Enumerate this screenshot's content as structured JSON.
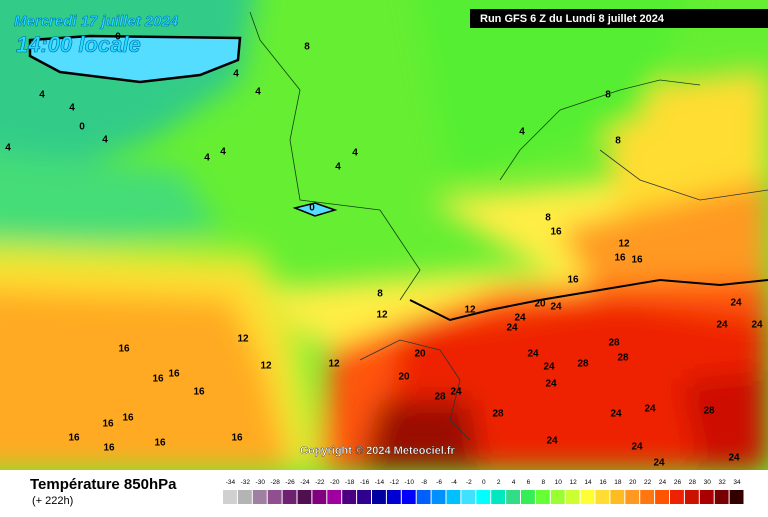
{
  "header": {
    "date": "Mercredi 17 juillet 2024",
    "time": "14:00 locale",
    "run": "Run GFS 6 Z du Lundi 8 juillet 2024"
  },
  "copyright": "Copyright © 2024 Meteociel.fr",
  "footer": {
    "title": "Température 850hPa",
    "lead": "(+ 222h)"
  },
  "legend": {
    "values": [
      -34,
      -32,
      -30,
      -28,
      -26,
      -24,
      -22,
      -20,
      -18,
      -16,
      -14,
      -12,
      -10,
      -8,
      -6,
      -4,
      -2,
      0,
      2,
      4,
      6,
      8,
      10,
      12,
      14,
      16,
      18,
      20,
      22,
      24,
      26,
      28,
      30,
      32,
      34
    ],
    "colors": [
      "#d0d0d0",
      "#b4b4b4",
      "#a080a0",
      "#905090",
      "#702070",
      "#501050",
      "#800080",
      "#a000a0",
      "#4b0082",
      "#300090",
      "#0000a0",
      "#0000d0",
      "#0000ff",
      "#0060ff",
      "#0090ff",
      "#00c0ff",
      "#40e0ff",
      "#00ffff",
      "#00e8c0",
      "#33dd88",
      "#33ee55",
      "#66ff33",
      "#99ff33",
      "#ccff33",
      "#ffff33",
      "#ffdd33",
      "#ffbb22",
      "#ff9922",
      "#ff7711",
      "#ff5500",
      "#ee2200",
      "#cc1100",
      "#aa0000",
      "#770000",
      "#330000"
    ]
  },
  "contour_labels": [
    0,
    4,
    4,
    4,
    0,
    4,
    4,
    4,
    8,
    4,
    4,
    0,
    4,
    4,
    4,
    8,
    8,
    8,
    12,
    12,
    12,
    12,
    16,
    16,
    16,
    16,
    16,
    16,
    16,
    16,
    16,
    16,
    16,
    20,
    20,
    24,
    24,
    24,
    24,
    24,
    28,
    28,
    24,
    24,
    28,
    24,
    24,
    28,
    28,
    24,
    24,
    24,
    24,
    12,
    16,
    16,
    16,
    8,
    12,
    20,
    24,
    28,
    24,
    24
  ]
}
